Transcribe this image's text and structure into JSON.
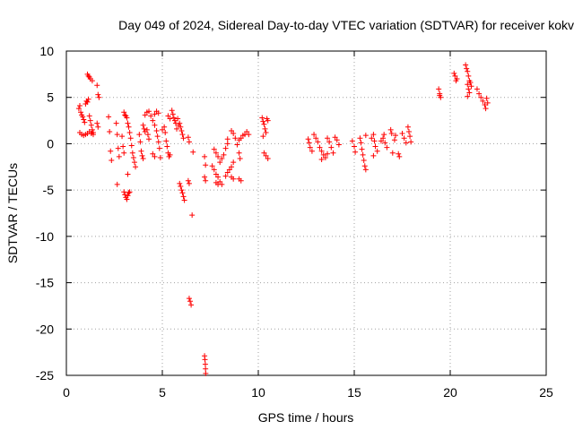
{
  "chart_data": {
    "type": "scatter",
    "title": "Day 049 of 2024, Sidereal Day-to-day VTEC variation (SDTVAR) for receiver kokv",
    "xlabel": "GPS time / hours",
    "ylabel": "SDTVAR / TECUs",
    "xlim": [
      0,
      25
    ],
    "ylim": [
      -25,
      10
    ],
    "xticks": [
      "0",
      "5",
      "10",
      "15",
      "20",
      "25"
    ],
    "yticks": [
      "10",
      "5",
      "0",
      "-5",
      "-10",
      "-15",
      "-20",
      "-25"
    ],
    "grid": true,
    "marker": "plus",
    "color": "#ff0000",
    "series": [
      {
        "name": "SDTVAR",
        "points": [
          [
            0.65,
            3.8
          ],
          [
            0.7,
            4.1
          ],
          [
            0.75,
            3.4
          ],
          [
            0.8,
            3.1
          ],
          [
            0.85,
            2.9
          ],
          [
            0.9,
            2.6
          ],
          [
            0.95,
            2.3
          ],
          [
            1.0,
            4.3
          ],
          [
            1.05,
            4.6
          ],
          [
            1.1,
            4.5
          ],
          [
            1.15,
            4.8
          ],
          [
            1.2,
            3.0
          ],
          [
            1.25,
            2.5
          ],
          [
            1.3,
            2.0
          ],
          [
            1.35,
            1.5
          ],
          [
            1.4,
            1.2
          ],
          [
            0.7,
            1.2
          ],
          [
            0.8,
            1.0
          ],
          [
            0.9,
            0.9
          ],
          [
            1.0,
            1.0
          ],
          [
            1.1,
            1.1
          ],
          [
            1.2,
            1.3
          ],
          [
            1.3,
            1.1
          ],
          [
            1.4,
            1.0
          ],
          [
            1.1,
            7.5
          ],
          [
            1.15,
            7.3
          ],
          [
            1.2,
            7.2
          ],
          [
            1.25,
            7.0
          ],
          [
            1.35,
            6.8
          ],
          [
            1.6,
            6.3
          ],
          [
            1.65,
            5.3
          ],
          [
            1.7,
            5.0
          ],
          [
            1.6,
            2.2
          ],
          [
            1.65,
            1.8
          ],
          [
            2.2,
            2.9
          ],
          [
            2.25,
            1.3
          ],
          [
            2.3,
            -0.8
          ],
          [
            2.35,
            -1.8
          ],
          [
            2.6,
            2.2
          ],
          [
            2.65,
            1.0
          ],
          [
            2.7,
            -0.5
          ],
          [
            2.75,
            -1.4
          ],
          [
            2.65,
            -4.4
          ],
          [
            2.9,
            0.8
          ],
          [
            2.95,
            -0.3
          ],
          [
            3.0,
            -1.0
          ],
          [
            3.0,
            -5.2
          ],
          [
            3.05,
            -5.5
          ],
          [
            3.1,
            -5.8
          ],
          [
            3.15,
            -6.0
          ],
          [
            3.2,
            -5.6
          ],
          [
            3.25,
            -5.3
          ],
          [
            3.3,
            -5.2
          ],
          [
            3.0,
            3.4
          ],
          [
            3.05,
            3.1
          ],
          [
            3.1,
            3.0
          ],
          [
            3.15,
            2.8
          ],
          [
            3.2,
            2.2
          ],
          [
            3.25,
            1.8
          ],
          [
            3.3,
            1.2
          ],
          [
            3.35,
            0.6
          ],
          [
            3.4,
            -0.2
          ],
          [
            3.45,
            -1.0
          ],
          [
            3.5,
            -1.5
          ],
          [
            3.55,
            -2.0
          ],
          [
            3.6,
            -2.5
          ],
          [
            3.2,
            -3.3
          ],
          [
            3.8,
            1.0
          ],
          [
            3.85,
            0.2
          ],
          [
            3.9,
            -0.8
          ],
          [
            3.95,
            -1.3
          ],
          [
            4.0,
            -1.6
          ],
          [
            4.0,
            2.0
          ],
          [
            4.05,
            1.6
          ],
          [
            4.1,
            1.3
          ],
          [
            4.2,
            1.5
          ],
          [
            4.25,
            1.0
          ],
          [
            4.3,
            0.5
          ],
          [
            4.1,
            3.1
          ],
          [
            4.2,
            3.4
          ],
          [
            4.3,
            3.5
          ],
          [
            4.4,
            3.0
          ],
          [
            4.5,
            2.5
          ],
          [
            4.6,
            2.0
          ],
          [
            4.7,
            1.4
          ],
          [
            4.75,
            0.8
          ],
          [
            4.8,
            0.2
          ],
          [
            4.85,
            -0.5
          ],
          [
            4.9,
            -1.5
          ],
          [
            4.5,
            -1.1
          ],
          [
            4.6,
            -1.4
          ],
          [
            4.6,
            3.2
          ],
          [
            4.7,
            3.5
          ],
          [
            4.8,
            3.3
          ],
          [
            5.0,
            1.5
          ],
          [
            5.1,
            1.8
          ],
          [
            5.15,
            1.2
          ],
          [
            5.2,
            0.3
          ],
          [
            5.25,
            -0.3
          ],
          [
            5.3,
            -1.0
          ],
          [
            5.35,
            -1.4
          ],
          [
            5.4,
            -1.2
          ],
          [
            5.3,
            3.0
          ],
          [
            5.4,
            2.7
          ],
          [
            5.5,
            3.6
          ],
          [
            5.55,
            3.2
          ],
          [
            5.6,
            2.8
          ],
          [
            5.65,
            2.5
          ],
          [
            5.7,
            2.2
          ],
          [
            5.75,
            1.6
          ],
          [
            5.8,
            2.7
          ],
          [
            5.85,
            2.0
          ],
          [
            5.9,
            2.2
          ],
          [
            5.95,
            1.8
          ],
          [
            6.0,
            1.4
          ],
          [
            6.05,
            1.0
          ],
          [
            6.1,
            0.6
          ],
          [
            5.9,
            -4.3
          ],
          [
            5.95,
            -4.6
          ],
          [
            6.0,
            -5.0
          ],
          [
            6.05,
            -5.3
          ],
          [
            6.1,
            -5.7
          ],
          [
            6.15,
            -6.1
          ],
          [
            6.35,
            0.7
          ],
          [
            6.4,
            0.2
          ],
          [
            6.35,
            -4.0
          ],
          [
            6.4,
            -4.3
          ],
          [
            6.55,
            -7.7
          ],
          [
            6.4,
            -16.7
          ],
          [
            6.45,
            -17.0
          ],
          [
            6.5,
            -17.4
          ],
          [
            6.6,
            -0.9
          ],
          [
            7.2,
            -1.4
          ],
          [
            7.25,
            -2.3
          ],
          [
            7.2,
            -3.6
          ],
          [
            7.25,
            -4.0
          ],
          [
            7.2,
            -22.9
          ],
          [
            7.22,
            -23.3
          ],
          [
            7.24,
            -23.8
          ],
          [
            7.25,
            -24.3
          ],
          [
            7.26,
            -24.8
          ],
          [
            7.7,
            -0.6
          ],
          [
            7.8,
            -1.0
          ],
          [
            7.9,
            -1.4
          ],
          [
            8.0,
            -2.0
          ],
          [
            8.1,
            -1.6
          ],
          [
            8.2,
            -1.2
          ],
          [
            8.3,
            -0.5
          ],
          [
            8.4,
            0.0
          ],
          [
            7.6,
            -2.4
          ],
          [
            7.7,
            -2.8
          ],
          [
            7.8,
            -3.3
          ],
          [
            7.9,
            -3.6
          ],
          [
            8.0,
            -4.1
          ],
          [
            8.1,
            -4.4
          ],
          [
            7.8,
            -4.2
          ],
          [
            7.9,
            -4.4
          ],
          [
            8.3,
            -3.5
          ],
          [
            8.4,
            -3.1
          ],
          [
            8.5,
            -2.8
          ],
          [
            8.6,
            -2.5
          ],
          [
            8.7,
            -2.0
          ],
          [
            8.6,
            -3.6
          ],
          [
            8.7,
            -3.8
          ],
          [
            8.4,
            0.5
          ],
          [
            8.6,
            1.4
          ],
          [
            8.7,
            1.1
          ],
          [
            8.8,
            0.6
          ],
          [
            8.9,
            -0.1
          ],
          [
            9.0,
            -1.0
          ],
          [
            9.05,
            -1.6
          ],
          [
            9.0,
            0.4
          ],
          [
            9.1,
            0.6
          ],
          [
            9.2,
            0.9
          ],
          [
            9.3,
            1.0
          ],
          [
            9.4,
            1.3
          ],
          [
            9.5,
            1.0
          ],
          [
            9.0,
            -3.8
          ],
          [
            9.1,
            -4.0
          ],
          [
            10.2,
            2.8
          ],
          [
            10.25,
            2.4
          ],
          [
            10.3,
            2.1
          ],
          [
            10.35,
            1.6
          ],
          [
            10.4,
            1.2
          ],
          [
            10.45,
            2.7
          ],
          [
            10.5,
            2.5
          ],
          [
            10.3,
            -1.0
          ],
          [
            10.4,
            -1.3
          ],
          [
            10.5,
            -1.6
          ],
          [
            10.25,
            0.8
          ],
          [
            12.6,
            0.5
          ],
          [
            12.65,
            0.1
          ],
          [
            12.7,
            -0.4
          ],
          [
            12.8,
            -0.8
          ],
          [
            12.9,
            1.0
          ],
          [
            13.0,
            0.6
          ],
          [
            13.1,
            0.2
          ],
          [
            13.2,
            -0.4
          ],
          [
            13.3,
            -0.8
          ],
          [
            13.4,
            -1.2
          ],
          [
            13.5,
            -1.5
          ],
          [
            13.6,
            0.6
          ],
          [
            13.7,
            0.2
          ],
          [
            13.8,
            -0.4
          ],
          [
            13.9,
            -1.0
          ],
          [
            14.0,
            0.7
          ],
          [
            14.1,
            0.4
          ],
          [
            14.2,
            -0.1
          ],
          [
            13.3,
            -1.7
          ],
          [
            13.6,
            -1.1
          ],
          [
            14.9,
            0.3
          ],
          [
            15.0,
            -0.3
          ],
          [
            15.05,
            -0.9
          ],
          [
            15.3,
            0.6
          ],
          [
            15.35,
            0.1
          ],
          [
            15.4,
            -0.6
          ],
          [
            15.45,
            -1.2
          ],
          [
            15.5,
            -1.8
          ],
          [
            15.55,
            -2.4
          ],
          [
            15.6,
            -2.8
          ],
          [
            15.6,
            0.9
          ],
          [
            15.9,
            0.6
          ],
          [
            16.0,
            1.0
          ],
          [
            16.05,
            0.3
          ],
          [
            16.1,
            -0.3
          ],
          [
            16.2,
            -0.8
          ],
          [
            16.0,
            -1.3
          ],
          [
            16.4,
            0.3
          ],
          [
            16.5,
            0.6
          ],
          [
            16.55,
            1.0
          ],
          [
            16.6,
            0.1
          ],
          [
            16.7,
            -0.4
          ],
          [
            16.9,
            1.5
          ],
          [
            16.95,
            1.1
          ],
          [
            17.0,
            -1.0
          ],
          [
            17.1,
            0.4
          ],
          [
            17.15,
            0.9
          ],
          [
            17.3,
            -1.1
          ],
          [
            17.35,
            -1.4
          ],
          [
            17.5,
            1.1
          ],
          [
            17.6,
            0.6
          ],
          [
            17.7,
            0.1
          ],
          [
            17.8,
            1.8
          ],
          [
            17.85,
            1.3
          ],
          [
            17.9,
            0.8
          ],
          [
            17.95,
            0.2
          ],
          [
            19.4,
            5.9
          ],
          [
            19.45,
            5.4
          ],
          [
            19.5,
            5.0
          ],
          [
            19.45,
            5.2
          ],
          [
            20.2,
            7.6
          ],
          [
            20.25,
            7.3
          ],
          [
            20.3,
            6.8
          ],
          [
            20.35,
            7.0
          ],
          [
            20.8,
            8.5
          ],
          [
            20.85,
            8.1
          ],
          [
            20.9,
            7.8
          ],
          [
            20.95,
            7.3
          ],
          [
            21.0,
            6.8
          ],
          [
            20.9,
            6.4
          ],
          [
            20.95,
            5.9
          ],
          [
            21.0,
            5.5
          ],
          [
            20.9,
            5.1
          ],
          [
            21.05,
            6.6
          ],
          [
            21.1,
            6.2
          ],
          [
            21.4,
            5.9
          ],
          [
            21.5,
            5.4
          ],
          [
            21.6,
            5.0
          ],
          [
            21.7,
            4.6
          ],
          [
            21.8,
            4.2
          ],
          [
            21.85,
            3.8
          ],
          [
            21.9,
            4.9
          ],
          [
            21.95,
            4.4
          ]
        ]
      }
    ]
  }
}
